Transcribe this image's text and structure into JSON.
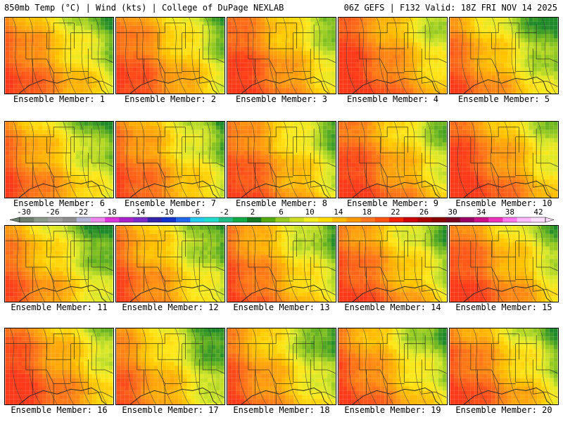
{
  "header": {
    "left_title": "850mb Temp (°C) | Wind (kts) | College of DuPage NEXLAB",
    "right_title": "06Z GEFS | F132 Valid: 18Z FRI NOV 14 2025"
  },
  "panels": [
    {
      "label": "Ensemble Member: 1"
    },
    {
      "label": "Ensemble Member: 2"
    },
    {
      "label": "Ensemble Member: 3"
    },
    {
      "label": "Ensemble Member: 4"
    },
    {
      "label": "Ensemble Member: 5"
    },
    {
      "label": "Ensemble Member: 6"
    },
    {
      "label": "Ensemble Member: 7"
    },
    {
      "label": "Ensemble Member: 8"
    },
    {
      "label": "Ensemble Member: 9"
    },
    {
      "label": "Ensemble Member: 10"
    },
    {
      "label": "Ensemble Member: 11"
    },
    {
      "label": "Ensemble Member: 12"
    },
    {
      "label": "Ensemble Member: 13"
    },
    {
      "label": "Ensemble Member: 14"
    },
    {
      "label": "Ensemble Member: 15"
    },
    {
      "label": "Ensemble Member: 16"
    },
    {
      "label": "Ensemble Member: 17"
    },
    {
      "label": "Ensemble Member: 18"
    },
    {
      "label": "Ensemble Member: 19"
    },
    {
      "label": "Ensemble Member: 20"
    }
  ],
  "colorbar": {
    "labels": [
      "-30",
      "-26",
      "-22",
      "-18",
      "-14",
      "-10",
      "-6",
      "-2",
      "2",
      "6",
      "10",
      "14",
      "18",
      "22",
      "26",
      "30",
      "34",
      "38",
      "42"
    ],
    "colors": [
      "#6f7f6f",
      "#8c9a8c",
      "#a0a0a0",
      "#8f8f8f",
      "#b4b4d8",
      "#ee88ee",
      "#dd33dd",
      "#aa22cc",
      "#7a2bc8",
      "#3322aa",
      "#1133cc",
      "#2266ee",
      "#22ccee",
      "#22ddcc",
      "#22bb88",
      "#11aa44",
      "#117722",
      "#55aa11",
      "#99cc22",
      "#ccdd22",
      "#f2ee22",
      "#ffdd00",
      "#ffbb00",
      "#ff9900",
      "#ff7722",
      "#ff5511",
      "#ee2200",
      "#cc0000",
      "#aa0000",
      "#880000",
      "#770022",
      "#990066",
      "#cc1188",
      "#ee33bb",
      "#ff77ee",
      "#ffbbff",
      "#ffddff"
    ]
  }
}
